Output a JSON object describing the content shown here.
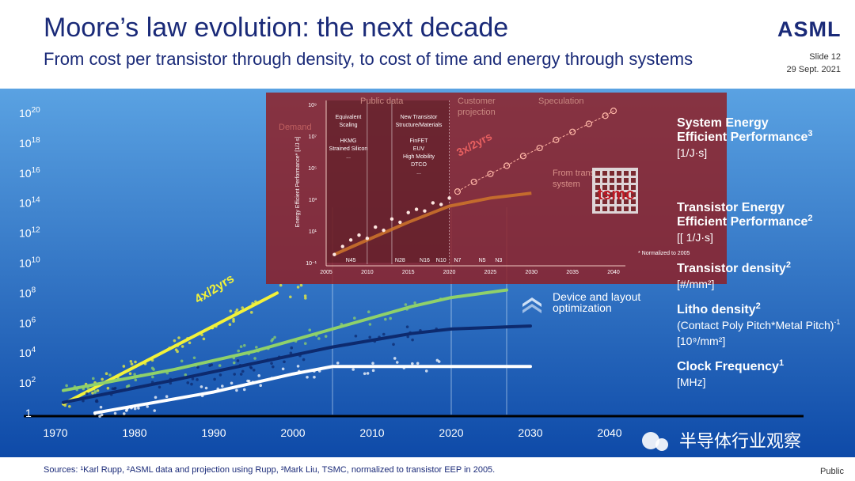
{
  "header": {
    "title": "Moore’s law evolution: the next decade",
    "subtitle": "From cost per transistor through density, to cost of time and energy through systems",
    "logo": "ASML",
    "slide": "Slide 12",
    "date": "29 Sept. 2021"
  },
  "footer": {
    "sources": "Sources: ¹Karl Rupp, ²ASML data and projection using Rupp, ³Mark Liu, TSMC, normalized to transistor EEP in 2005.",
    "classification": "Public",
    "watermark": "半导体行业观察"
  },
  "colors": {
    "background_top": "#5aa2e2",
    "background_bottom": "#0e4aa8",
    "yellow": "#f2f23a",
    "green": "#8fd16a",
    "navy": "#0d2a6e",
    "white_line": "#ffffff",
    "inset": "#8e2026"
  },
  "chart_data": {
    "type": "line",
    "x_axis": {
      "ticks": [
        "1970",
        "1980",
        "1990",
        "2000",
        "2010",
        "2020",
        "2030",
        "2040"
      ],
      "range": [
        1966,
        2044
      ]
    },
    "y_axis": {
      "scale": "log10",
      "range": [
        0,
        21
      ],
      "tick_bases": [
        "10",
        "10",
        "10",
        "10",
        "10",
        "10",
        "10",
        "10",
        "10",
        "10"
      ],
      "tick_exps": [
        "20",
        "18",
        "16",
        "14",
        "12",
        "10",
        "8",
        "6",
        "4",
        "2"
      ],
      "one_label": "1"
    },
    "annotations": {
      "growth_rate": "4x/2yrs",
      "optimization": [
        "Device and layout",
        "optimization"
      ]
    },
    "vertical_markers": [
      2005,
      2020,
      2027
    ],
    "series": [
      {
        "name": "Transistor density",
        "color": "#f2f23a",
        "x": [
          1971,
          1998
        ],
        "y_log10": [
          0.6,
          8.0
        ]
      },
      {
        "name": "Litho density",
        "color": "#8fd16a",
        "x": [
          1971,
          1985,
          1995,
          2005,
          2015,
          2020,
          2027
        ],
        "y_log10": [
          1.5,
          2.9,
          4.1,
          5.6,
          7.1,
          7.7,
          8.2
        ]
      },
      {
        "name": "Clock Frequency",
        "color": "#0d2a6e",
        "x": [
          1971,
          1985,
          1995,
          2005,
          2015,
          2020,
          2030
        ],
        "y_log10": [
          0.7,
          2.2,
          3.3,
          4.4,
          5.3,
          5.6,
          5.8
        ]
      },
      {
        "name": "Transistor Energy Efficient Performance",
        "color": "#ffffff",
        "x": [
          1975,
          1990,
          2000,
          2005,
          2030
        ],
        "y_log10": [
          0.0,
          1.4,
          2.6,
          3.1,
          3.1
        ]
      }
    ],
    "labels": [
      {
        "title": "System Energy",
        "title2": "Efficient Performance",
        "sup": "3",
        "unit": "[1/J·s]"
      },
      {
        "title": "Transistor Energy",
        "title2": "Efficient Performance",
        "sup": "2",
        "unit": "[[ 1/J·s]"
      },
      {
        "title": "Transistor density",
        "sup": "2",
        "unit": "[#/mm²]"
      },
      {
        "title": "Litho density",
        "sup": "2",
        "unit": "(Contact Poly Pitch*Metal Pitch)",
        "unit_sup": "-1",
        "unit2": "[10⁹/mm²]"
      },
      {
        "title": "Clock Frequency",
        "sup": "1",
        "unit": "[MHz]"
      }
    ],
    "inset": {
      "ylabel": "Energy Efficient Performance* [1/J·s]",
      "x_ticks": [
        "2005",
        "2010",
        "2015",
        "2020",
        "2025",
        "2030",
        "2035",
        "2040"
      ],
      "y_ticks": [
        "10⁹",
        "10⁷",
        "10⁵",
        "10³",
        "10¹",
        "10⁻¹"
      ],
      "regions": [
        {
          "title": "Public data",
          "lines": []
        },
        {
          "title": "Equivalent",
          "lines": [
            "Scaling",
            "",
            "HKMG",
            "Strained Silicon",
            "..."
          ]
        },
        {
          "title": "New Transistor",
          "lines": [
            "Structure/Materials",
            "",
            "FinFET",
            "EUV",
            "High Mobility",
            "DTCO",
            "..."
          ]
        },
        {
          "title": "Customer",
          "lines": [
            "projection"
          ]
        },
        {
          "title": "Speculation",
          "lines": []
        }
      ],
      "nodes": [
        "N45",
        "N28",
        "N16",
        "N10",
        "N7",
        "N5",
        "N3"
      ],
      "rate": "3x/2yrs",
      "system_note": [
        "From transistor to",
        "system"
      ],
      "dimmed_label": "Demand",
      "tsmc_logo": "tsmc",
      "footnote": "* Normalized to 2005",
      "points_x": [
        2006,
        2007,
        2008,
        2009,
        2010,
        2011,
        2012,
        2013,
        2014,
        2015,
        2016,
        2017,
        2018,
        2019,
        2020
      ],
      "points_y_log": [
        -0.3,
        0.2,
        0.6,
        0.9,
        0.7,
        1.4,
        1.2,
        1.9,
        1.7,
        2.3,
        2.5,
        2.4,
        2.9,
        2.8,
        3.2
      ],
      "projection_x": [
        2021,
        2023,
        2025,
        2027,
        2029,
        2031,
        2033,
        2035,
        2037,
        2039,
        2040
      ],
      "projection_y_log": [
        3.6,
        4.2,
        4.7,
        5.2,
        5.8,
        6.3,
        6.8,
        7.3,
        7.8,
        8.3,
        8.6
      ],
      "transistor_eep_x": [
        2006,
        2010,
        2015,
        2020,
        2025,
        2030
      ],
      "transistor_eep_y_log": [
        -0.3,
        0.6,
        1.7,
        2.7,
        3.2,
        3.5
      ]
    }
  }
}
